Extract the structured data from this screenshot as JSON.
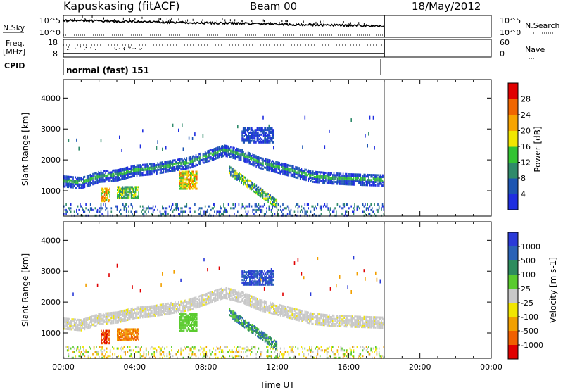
{
  "header": {
    "station": "Kapuskasing (fitACF)",
    "beam": "Beam 00",
    "date": "18/May/2012"
  },
  "panels": {
    "nsky": {
      "label": "N.Sky",
      "right_label": "N.Search",
      "left_ticks": [
        "10^5",
        "10^0"
      ],
      "right_ticks": [
        "10^5",
        "10^0"
      ]
    },
    "freq": {
      "label_line1": "Freq.",
      "label_line2": "[MHz]",
      "right_label": "Nave",
      "left_ticks": [
        "18",
        "8"
      ],
      "right_ticks": [
        "60",
        "0"
      ]
    },
    "cpid": {
      "label": "CPID",
      "value": "normal (fast) 151"
    }
  },
  "chart_data": [
    {
      "type": "heatmap",
      "panel": "power",
      "ylabel": "Slant Range [km]",
      "xlabel": "",
      "xlim": [
        "00:00",
        "24:00"
      ],
      "ylim": [
        180,
        4600
      ],
      "yticks": [
        "1000",
        "2000",
        "3000",
        "4000"
      ],
      "colorbar": {
        "label": "Power [dB]",
        "ticks": [
          "4",
          "8",
          "12",
          "16",
          "20",
          "24",
          "28"
        ],
        "colors": [
          "#1f2ee0",
          "#1c55b2",
          "#2f8a6a",
          "#33c433",
          "#f2e600",
          "#f7a400",
          "#f06600",
          "#e00000"
        ]
      },
      "data_end_time": "18:00",
      "features": [
        {
          "name": "main echo band",
          "times": [
            "00:00",
            "01:00",
            "02:00",
            "03:00",
            "04:00",
            "05:00",
            "06:00",
            "07:00",
            "08:00",
            "09:00",
            "10:00",
            "11:00",
            "12:00",
            "13:00",
            "14:00",
            "15:00",
            "16:00",
            "17:00",
            "18:00"
          ],
          "range_km": [
            1350,
            1300,
            1500,
            1550,
            1700,
            1750,
            1850,
            1950,
            2150,
            2350,
            2200,
            1950,
            1800,
            1650,
            1500,
            1450,
            1420,
            1400,
            1380
          ]
        }
      ]
    },
    {
      "type": "heatmap",
      "panel": "velocity",
      "ylabel": "Slant Range [km]",
      "xlabel": "Time UT",
      "xlim": [
        "00:00",
        "24:00"
      ],
      "ylim": [
        180,
        4600
      ],
      "yticks": [
        "1000",
        "2000",
        "3000",
        "4000"
      ],
      "xticks": [
        "00:00",
        "04:00",
        "08:00",
        "12:00",
        "16:00",
        "20:00",
        "00:00"
      ],
      "colorbar": {
        "label": "Velocity [m s-1]",
        "ticks": [
          "1000",
          "500",
          "100",
          "25",
          "-25",
          "-100",
          "-500",
          "-1000"
        ],
        "colors": [
          "#2a3ad8",
          "#2a62b6",
          "#2d8c5e",
          "#5acb2e",
          "#c8c8c8",
          "#f2e600",
          "#f2a000",
          "#f06000",
          "#e00000"
        ]
      },
      "data_end_time": "18:00"
    }
  ]
}
